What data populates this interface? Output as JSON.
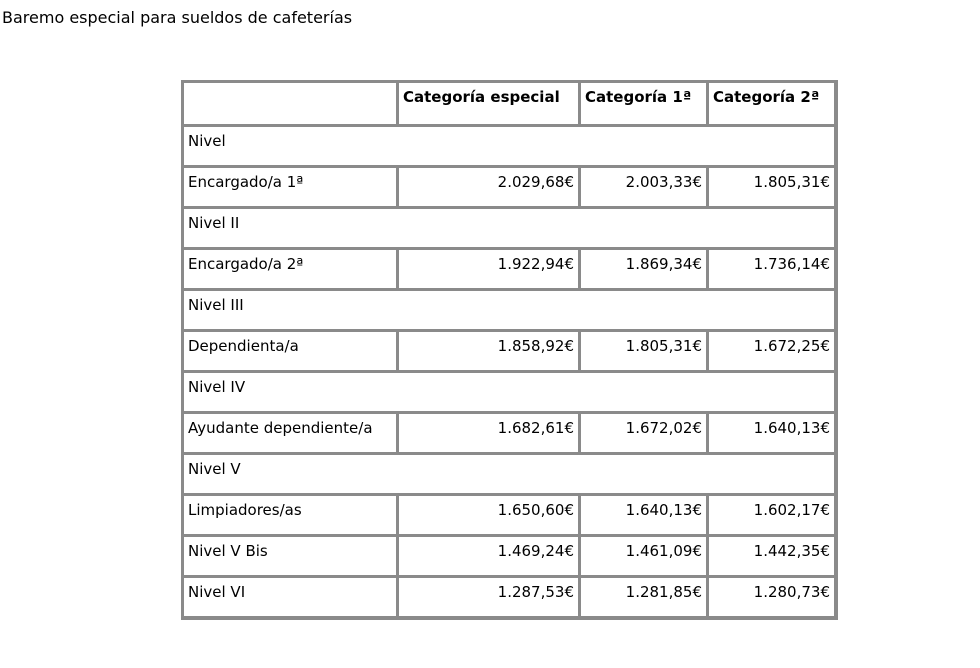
{
  "page": {
    "title": "Baremo especial para sueldos de cafeterías"
  },
  "table": {
    "headers": [
      "",
      "Categoría especial",
      "Categoría 1ª",
      "Categoría 2ª"
    ],
    "rows": [
      {
        "type": "level",
        "label": "Nivel"
      },
      {
        "type": "data",
        "label": "Encargado/a 1ª",
        "values": [
          "2.029,68€",
          "2.003,33€",
          "1.805,31€"
        ]
      },
      {
        "type": "level",
        "label": "Nivel II"
      },
      {
        "type": "data",
        "label": "Encargado/a 2ª",
        "values": [
          "1.922,94€",
          "1.869,34€",
          "1.736,14€"
        ]
      },
      {
        "type": "level",
        "label": "Nivel III"
      },
      {
        "type": "data",
        "label": "Dependienta/a",
        "values": [
          "1.858,92€",
          "1.805,31€",
          "1.672,25€"
        ]
      },
      {
        "type": "level",
        "label": "Nivel IV"
      },
      {
        "type": "data",
        "label": "Ayudante dependiente/a",
        "values": [
          "1.682,61€",
          "1.672,02€",
          "1.640,13€"
        ]
      },
      {
        "type": "level",
        "label": "Nivel V"
      },
      {
        "type": "data",
        "label": "Limpiadores/as",
        "values": [
          "1.650,60€",
          "1.640,13€",
          "1.602,17€"
        ]
      },
      {
        "type": "data",
        "label": "Nivel V Bis",
        "values": [
          "1.469,24€",
          "1.461,09€",
          "1.442,35€"
        ]
      },
      {
        "type": "data",
        "label": "Nivel VI",
        "values": [
          "1.287,53€",
          "1.281,85€",
          "1.280,73€"
        ]
      }
    ]
  }
}
